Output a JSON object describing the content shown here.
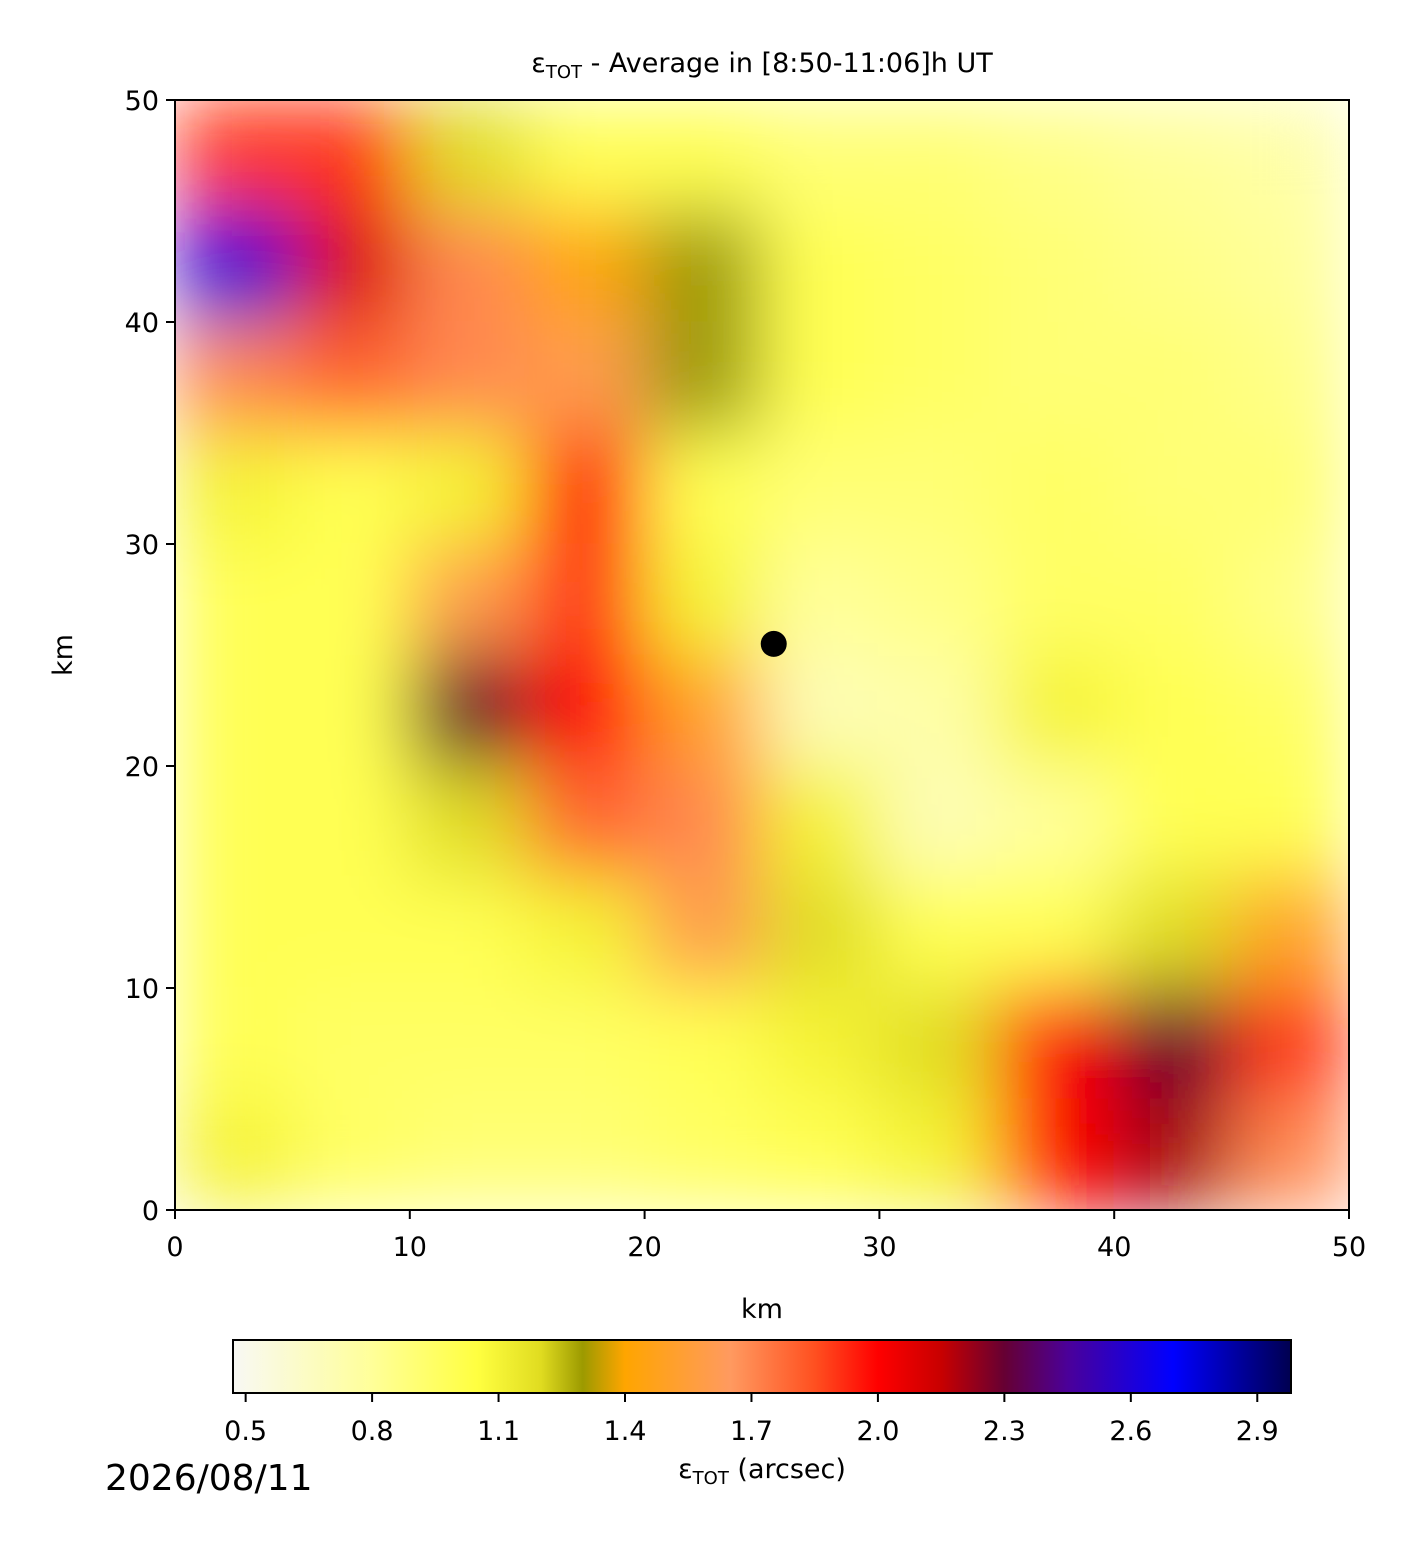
{
  "chart_data": {
    "type": "heatmap",
    "title": [
      "ε",
      "TOT",
      " - Average in [8:50-11:06]h UT"
    ],
    "xlabel": "km",
    "ylabel": "km",
    "x": [
      2.5,
      7.5,
      12.5,
      17.5,
      22.5,
      27.5,
      32.5,
      37.5,
      42.5,
      47.5
    ],
    "y": [
      47.5,
      42.5,
      37.5,
      32.5,
      27.5,
      22.5,
      17.5,
      12.5,
      7.5,
      2.5
    ],
    "values": [
      [
        1.9,
        1.9,
        1.2,
        1.0,
        1.0,
        0.9,
        0.9,
        0.85,
        0.8,
        0.75
      ],
      [
        2.6,
        2.1,
        1.7,
        1.4,
        1.3,
        1.0,
        0.95,
        0.9,
        0.85,
        0.8
      ],
      [
        1.7,
        1.8,
        1.7,
        1.6,
        1.3,
        1.0,
        0.95,
        0.9,
        0.9,
        0.85
      ],
      [
        1.1,
        1.0,
        1.1,
        2.0,
        1.0,
        0.9,
        0.9,
        0.95,
        0.9,
        0.9
      ],
      [
        1.0,
        1.0,
        1.6,
        1.9,
        1.1,
        0.8,
        0.85,
        0.95,
        0.95,
        0.85
      ],
      [
        1.0,
        1.0,
        2.3,
        2.0,
        1.5,
        0.7,
        0.75,
        1.1,
        1.0,
        0.95
      ],
      [
        1.0,
        1.0,
        1.2,
        1.8,
        1.7,
        1.1,
        0.7,
        0.8,
        1.0,
        1.0
      ],
      [
        1.0,
        1.0,
        1.0,
        1.1,
        1.6,
        1.2,
        1.0,
        1.0,
        1.2,
        1.5
      ],
      [
        1.0,
        0.95,
        0.95,
        0.95,
        1.0,
        1.1,
        1.2,
        2.0,
        2.3,
        1.9
      ],
      [
        1.1,
        0.95,
        0.9,
        0.9,
        0.95,
        1.0,
        1.1,
        2.0,
        2.2,
        1.7
      ]
    ],
    "xlim": [
      0,
      50
    ],
    "ylim": [
      0,
      50
    ],
    "xticks": [
      0,
      10,
      20,
      30,
      40,
      50
    ],
    "yticks": [
      0,
      10,
      20,
      30,
      40,
      50
    ],
    "marker": {
      "x": 25.5,
      "y": 25.5,
      "color": "#000000"
    },
    "colorbar": {
      "label": [
        "ε",
        "TOT",
        " (arcsec)"
      ],
      "clim": [
        0.47,
        2.98
      ],
      "ticks": [
        0.5,
        0.8,
        1.1,
        1.4,
        1.7,
        {
          "value": 2.0,
          "label": "2.0"
        },
        2.3,
        2.6,
        2.9
      ],
      "colorscale": [
        {
          "value": 0.47,
          "color": "#f8f8f4"
        },
        {
          "value": 0.8,
          "color": "#ffff99"
        },
        {
          "value": 1.05,
          "color": "#ffff40"
        },
        {
          "value": 1.2,
          "color": "#e0dc20"
        },
        {
          "value": 1.3,
          "color": "#9c9a00"
        },
        {
          "value": 1.4,
          "color": "#ffa500"
        },
        {
          "value": 1.65,
          "color": "#ff9a60"
        },
        {
          "value": 1.85,
          "color": "#ff5020"
        },
        {
          "value": 2.0,
          "color": "#ff0000"
        },
        {
          "value": 2.15,
          "color": "#c80000"
        },
        {
          "value": 2.3,
          "color": "#660033"
        },
        {
          "value": 2.45,
          "color": "#4b0099"
        },
        {
          "value": 2.7,
          "color": "#0000ff"
        },
        {
          "value": 2.98,
          "color": "#000050"
        }
      ]
    },
    "annotation": "2026/08/11"
  }
}
